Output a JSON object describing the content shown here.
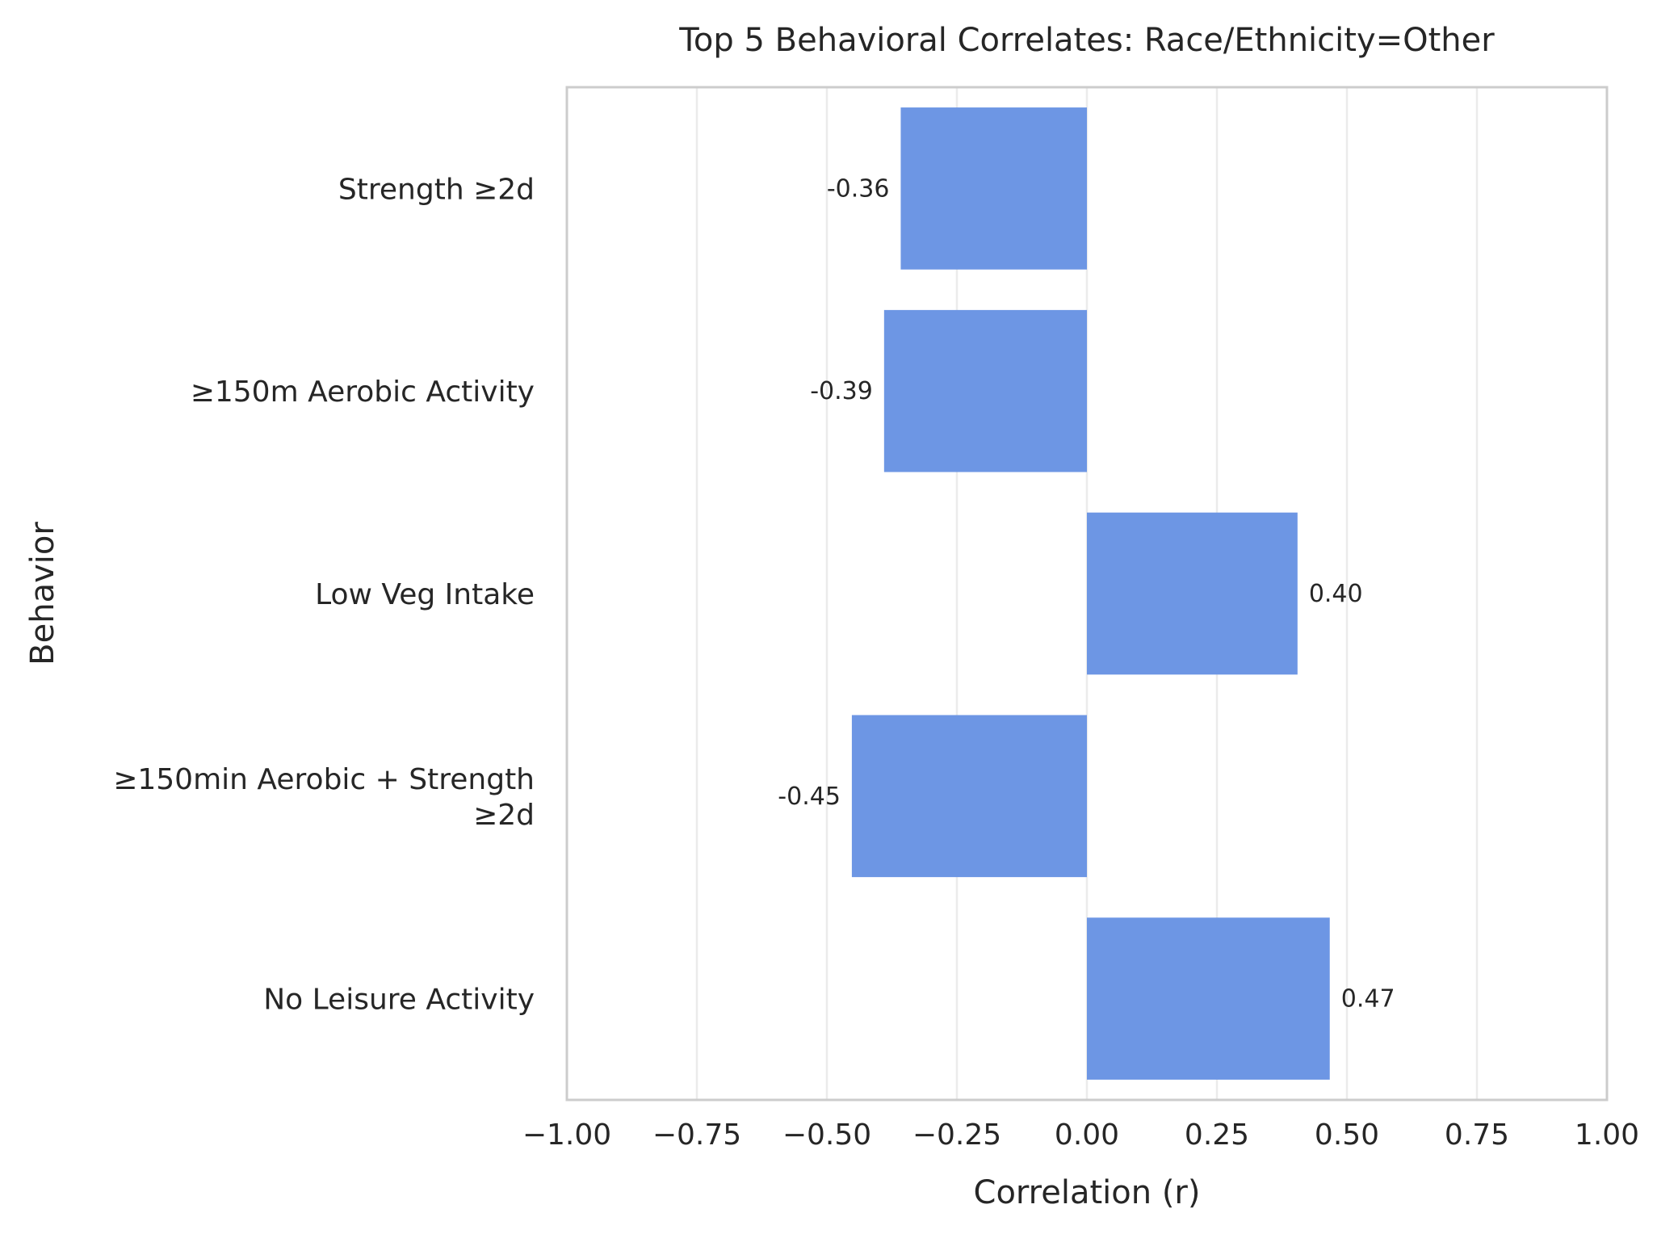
{
  "chart_data": {
    "type": "bar",
    "orientation": "horizontal",
    "title": "Top 5 Behavioral Correlates: Race/Ethnicity=Other",
    "xlabel": "Correlation (r)",
    "ylabel": "Behavior",
    "xlim": [
      -1.0,
      1.0
    ],
    "xticks": [
      -1.0,
      -0.75,
      -0.5,
      -0.25,
      0.0,
      0.25,
      0.5,
      0.75,
      1.0
    ],
    "xtick_labels": [
      "−1.00",
      "−0.75",
      "−0.50",
      "−0.25",
      "0.00",
      "0.25",
      "0.50",
      "0.75",
      "1.00"
    ],
    "grid": "vertical",
    "bar_color": "#6d96e4",
    "categories": [
      "Strength ≥2d",
      "≥150m Aerobic Activity",
      "Low Veg Intake",
      "≥150min Aerobic + Strength\n≥2d",
      "No Leisure Activity"
    ],
    "values": [
      -0.358,
      -0.39,
      0.405,
      -0.452,
      0.467
    ],
    "value_labels": [
      "-0.36",
      "-0.39",
      "0.40",
      "-0.45",
      "0.47"
    ]
  }
}
